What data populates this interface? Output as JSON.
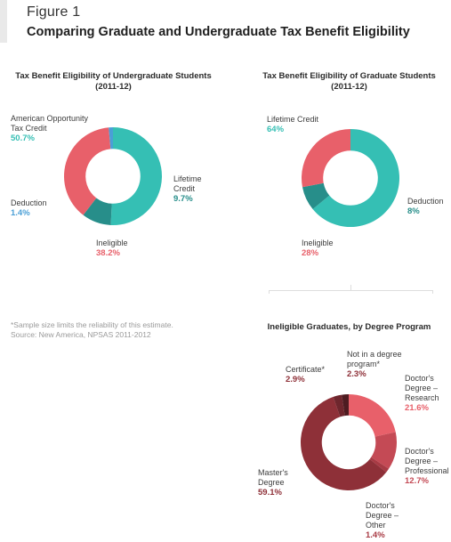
{
  "figure": {
    "label": "Figure 1",
    "title": "Comparing Graduate and Undergraduate Tax Benefit Eligibility"
  },
  "colors": {
    "teal": "#35bfb4",
    "dark_teal": "#278e8a",
    "blue": "#4a9fd6",
    "red": "#e8606a",
    "maroon": "#8e3038",
    "crimson": "#c44a55",
    "dark_maroon": "#5e2429"
  },
  "chart_data": [
    {
      "type": "pie",
      "title_line1": "Tax Benefit Eligibility of Undergraduate Students",
      "title_line2": "(2011-12)",
      "slices": [
        {
          "label": "American Opportunity Tax Credit",
          "label_lines": [
            "American Opportunity",
            "Tax Credit"
          ],
          "value": 50.7,
          "pct": "50.7%",
          "color": "#35bfb4"
        },
        {
          "label": "Lifetime Credit",
          "label_lines": [
            "Lifetime",
            "Credit"
          ],
          "value": 9.7,
          "pct": "9.7%",
          "color": "#278e8a"
        },
        {
          "label": "Ineligible",
          "label_lines": [
            "Ineligible"
          ],
          "value": 38.2,
          "pct": "38.2%",
          "color": "#e8606a"
        },
        {
          "label": "Deduction",
          "label_lines": [
            "Deduction"
          ],
          "value": 1.4,
          "pct": "1.4%",
          "color": "#4a9fd6"
        }
      ]
    },
    {
      "type": "pie",
      "title_line1": "Tax Benefit Eligibility of Graduate Students",
      "title_line2": "(2011-12)",
      "slices": [
        {
          "label": "Lifetime Credit",
          "label_lines": [
            "Lifetime Credit"
          ],
          "value": 64,
          "pct": "64%",
          "color": "#35bfb4"
        },
        {
          "label": "Deduction",
          "label_lines": [
            "Deduction"
          ],
          "value": 8,
          "pct": "8%",
          "color": "#278e8a"
        },
        {
          "label": "Ineligible",
          "label_lines": [
            "Ineligible"
          ],
          "value": 28,
          "pct": "28%",
          "color": "#e8606a"
        }
      ]
    },
    {
      "type": "pie",
      "title_line1": "Ineligible Graduates, by Degree Program",
      "title_line2": "",
      "slices": [
        {
          "label": "Doctor's Degree – Research",
          "label_lines": [
            "Doctor's",
            "Degree –",
            "Research"
          ],
          "value": 21.6,
          "pct": "21.6%",
          "color": "#e8606a"
        },
        {
          "label": "Doctor's Degree – Professional",
          "label_lines": [
            "Doctor's",
            "Degree –",
            "Professional"
          ],
          "value": 12.7,
          "pct": "12.7%",
          "color": "#c44a55"
        },
        {
          "label": "Doctor's Degree – Other",
          "label_lines": [
            "Doctor's",
            "Degree –",
            "Other"
          ],
          "value": 1.4,
          "pct": "1.4%",
          "color": "#a83a44"
        },
        {
          "label": "Master's Degree",
          "label_lines": [
            "Master's",
            "Degree"
          ],
          "value": 59.1,
          "pct": "59.1%",
          "color": "#8e3038"
        },
        {
          "label": "Certificate*",
          "label_lines": [
            "Certificate*"
          ],
          "value": 2.9,
          "pct": "2.9%",
          "color": "#6e262d"
        },
        {
          "label": "Not in a degree program*",
          "label_lines": [
            "Not in a degree",
            "program*"
          ],
          "value": 2.3,
          "pct": "2.3%",
          "color": "#4e1c21"
        }
      ]
    }
  ],
  "notes": {
    "line1": "*Sample size limits the reliability of this estimate.",
    "line2": "Source: New America, NPSAS 2011-2012"
  }
}
